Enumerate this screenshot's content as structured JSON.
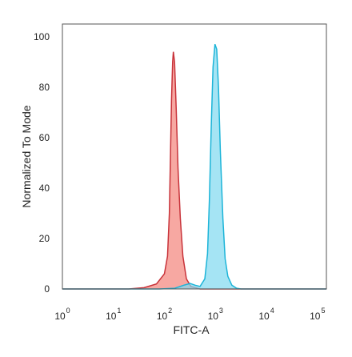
{
  "chart_data": {
    "type": "area",
    "title": "",
    "xlabel": "FITC-A",
    "ylabel": "Normalized To Mode",
    "x_scale": "log",
    "xlim": [
      1,
      150000
    ],
    "ylim": [
      0,
      105
    ],
    "grid": false,
    "x_ticks": [
      {
        "base": "10",
        "exp": "0",
        "value": 1
      },
      {
        "base": "10",
        "exp": "1",
        "value": 10
      },
      {
        "base": "10",
        "exp": "2",
        "value": 100
      },
      {
        "base": "10",
        "exp": "3",
        "value": 1000
      },
      {
        "base": "10",
        "exp": "4",
        "value": 10000
      },
      {
        "base": "10",
        "exp": "5",
        "value": 100000
      }
    ],
    "y_ticks": [
      "0",
      "20",
      "40",
      "60",
      "80",
      "100"
    ],
    "series": [
      {
        "color_fill": "#f4837a",
        "color_line": "#c8333a",
        "points": [
          [
            1,
            0
          ],
          [
            20,
            0
          ],
          [
            40,
            0.5
          ],
          [
            70,
            2
          ],
          [
            100,
            6
          ],
          [
            115,
            13
          ],
          [
            125,
            30
          ],
          [
            132,
            55
          ],
          [
            138,
            75
          ],
          [
            145,
            90
          ],
          [
            150,
            94
          ],
          [
            158,
            90
          ],
          [
            170,
            72
          ],
          [
            185,
            48
          ],
          [
            205,
            28
          ],
          [
            230,
            13
          ],
          [
            270,
            4
          ],
          [
            330,
            1
          ],
          [
            500,
            0
          ],
          [
            150000,
            0
          ]
        ]
      },
      {
        "color_fill": "#7fd8f0",
        "color_line": "#1cb4d8",
        "points": [
          [
            1,
            0
          ],
          [
            80,
            0
          ],
          [
            160,
            0.3
          ],
          [
            240,
            1.5
          ],
          [
            320,
            2.2
          ],
          [
            400,
            1.5
          ],
          [
            500,
            1
          ],
          [
            620,
            4
          ],
          [
            700,
            14
          ],
          [
            760,
            35
          ],
          [
            830,
            65
          ],
          [
            900,
            88
          ],
          [
            980,
            97
          ],
          [
            1060,
            95
          ],
          [
            1150,
            80
          ],
          [
            1250,
            55
          ],
          [
            1400,
            28
          ],
          [
            1550,
            12
          ],
          [
            1750,
            5
          ],
          [
            2100,
            1.5
          ],
          [
            2600,
            0.3
          ],
          [
            3200,
            0
          ],
          [
            150000,
            0
          ]
        ]
      }
    ]
  }
}
